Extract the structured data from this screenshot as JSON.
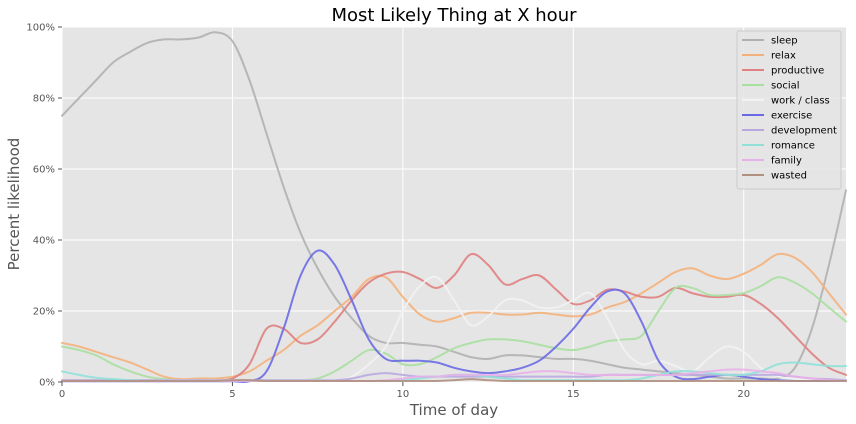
{
  "chart_data": {
    "type": "line",
    "title": "Most Likely Thing at X hour",
    "xlabel": "Time of day",
    "ylabel": "Percent likelihood",
    "xlim": [
      0,
      23
    ],
    "ylim": [
      0,
      100
    ],
    "x_ticks": [
      0,
      5,
      10,
      15,
      20
    ],
    "y_ticks": [
      0,
      20,
      40,
      60,
      80,
      100
    ],
    "y_tick_labels": [
      "0%",
      "20%",
      "40%",
      "60%",
      "80%",
      "100%"
    ],
    "grid": true,
    "legend_position": "top-right",
    "x": [
      0,
      0.5,
      1,
      1.5,
      2,
      2.5,
      3,
      3.5,
      4,
      4.5,
      5,
      5.5,
      6,
      6.5,
      7,
      7.5,
      8,
      8.5,
      9,
      9.5,
      10,
      10.5,
      11,
      11.5,
      12,
      12.5,
      13,
      13.5,
      14,
      14.5,
      15,
      15.5,
      16,
      16.5,
      17,
      17.5,
      18,
      18.5,
      19,
      19.5,
      20,
      20.5,
      21,
      21.5,
      22,
      22.5,
      23
    ],
    "series": [
      {
        "name": "sleep",
        "color": "#b0b0b0",
        "values": [
          75,
          80,
          85,
          90,
          93,
          95.5,
          96.5,
          96.5,
          97,
          98.5,
          96,
          85,
          70,
          55,
          42,
          32,
          24,
          18,
          13,
          11,
          11,
          10.5,
          10,
          8.5,
          7,
          6.5,
          7.5,
          7.5,
          7,
          6.5,
          6.5,
          6,
          5,
          4,
          3.5,
          3,
          2.5,
          2,
          1.5,
          1,
          1,
          1,
          1,
          4,
          15,
          33,
          54
        ]
      },
      {
        "name": "relax",
        "color": "#f4b07a",
        "values": [
          11,
          10,
          8.5,
          7,
          5.5,
          3.5,
          1.5,
          0.8,
          1,
          1,
          1.5,
          3,
          6,
          9,
          13,
          16,
          20,
          24,
          29,
          29.5,
          24,
          19,
          17,
          18,
          19.5,
          19.5,
          19,
          19,
          19.5,
          19,
          18.5,
          19,
          21,
          22.5,
          25,
          28,
          31,
          32,
          30,
          29,
          30.5,
          33,
          36,
          35,
          31,
          25,
          19
        ]
      },
      {
        "name": "productive",
        "color": "#e08080",
        "values": [
          0.5,
          0.5,
          0.5,
          0.5,
          0.5,
          0.5,
          0.5,
          0.5,
          0.5,
          0.5,
          1,
          5,
          15,
          15,
          11,
          12,
          17,
          23,
          28,
          30.5,
          31,
          29,
          26.5,
          30,
          36,
          33,
          27.5,
          29,
          30,
          26,
          22,
          23,
          26,
          25.5,
          24,
          24,
          26.5,
          25,
          24,
          24,
          24.5,
          22,
          18,
          13,
          8,
          4,
          2
        ]
      },
      {
        "name": "social",
        "color": "#a8dfa0",
        "values": [
          10,
          9,
          7.5,
          5,
          3,
          1.5,
          0.8,
          0.5,
          0.5,
          0.5,
          0.5,
          0.5,
          0.5,
          0.5,
          0.5,
          1,
          3,
          6,
          9,
          8,
          5,
          5,
          7,
          9.5,
          11,
          12,
          12,
          11.5,
          10.5,
          9.5,
          9,
          10,
          11.5,
          12,
          13,
          20,
          26.5,
          26.5,
          24.5,
          24.5,
          25,
          27,
          29.5,
          28,
          25,
          21,
          17
        ]
      },
      {
        "name": "work / class",
        "color": "#f2f2f2",
        "values": [
          0.5,
          0.5,
          0.5,
          0.5,
          0.5,
          0.5,
          0.5,
          0.5,
          0.5,
          0.5,
          0.5,
          0.5,
          0.5,
          0.5,
          0.5,
          0.5,
          0.5,
          1.5,
          5,
          10,
          20,
          27,
          29.5,
          23,
          16,
          18.5,
          23,
          23,
          21,
          21,
          23,
          25,
          18,
          9,
          5,
          6,
          4.5,
          3,
          7,
          10,
          8.5,
          4,
          1.5,
          1,
          0.5,
          0.5,
          0.5
        ]
      },
      {
        "name": "exercise",
        "color": "#6a6ae6",
        "values": [
          0.2,
          0.2,
          0.2,
          0.2,
          0.2,
          0.2,
          0.2,
          0.2,
          0.2,
          0.2,
          0.2,
          0.2,
          3,
          15,
          30,
          37,
          33,
          23,
          12,
          6.5,
          6,
          6,
          5.5,
          4,
          3,
          2.5,
          3,
          4,
          6,
          10,
          15,
          21,
          25.5,
          25,
          17,
          6,
          1.5,
          0.8,
          1.5,
          2,
          1.5,
          0.8,
          0.5,
          0.3,
          0.3,
          0.3,
          0.3
        ]
      },
      {
        "name": "development",
        "color": "#b8a8e0",
        "values": [
          0.5,
          0.5,
          0.5,
          0.5,
          0.5,
          0.5,
          0.5,
          0.5,
          0.5,
          0.5,
          0.5,
          0.5,
          0.5,
          0.5,
          0.5,
          0.5,
          0.5,
          1,
          2,
          2.5,
          2,
          1.5,
          1.5,
          1.5,
          1.5,
          1.5,
          1.5,
          1.5,
          1.5,
          1.5,
          1.5,
          1.5,
          2,
          2,
          2,
          2,
          2,
          2,
          2,
          2,
          2,
          2,
          2,
          1.5,
          1,
          0.8,
          0.5
        ]
      },
      {
        "name": "romance",
        "color": "#90e0d8",
        "values": [
          3,
          2,
          1.2,
          0.8,
          0.5,
          0.3,
          0.3,
          0.3,
          0.3,
          0.3,
          0.3,
          0.3,
          0.3,
          0.3,
          0.3,
          0.3,
          0.3,
          0.3,
          0.3,
          0.3,
          0.5,
          1,
          1.5,
          2,
          2,
          1.5,
          1,
          0.5,
          0.5,
          0.5,
          0.5,
          0.5,
          0.5,
          0.5,
          1,
          2,
          3,
          3,
          2.5,
          2,
          2,
          3,
          5,
          5.5,
          5,
          4.5,
          4.5
        ]
      },
      {
        "name": "family",
        "color": "#e8b0e8",
        "values": [
          0.3,
          0.3,
          0.3,
          0.3,
          0.3,
          0.3,
          0.3,
          0.3,
          0.3,
          0.3,
          0.3,
          0.3,
          0.3,
          0.3,
          0.3,
          0.3,
          0.3,
          0.3,
          0.3,
          0.5,
          1,
          1.5,
          1.5,
          2,
          2,
          2,
          2,
          2.5,
          3,
          3,
          2.5,
          2,
          2,
          2,
          2,
          2,
          2,
          2.5,
          3,
          3.5,
          3.5,
          3,
          2.5,
          1.5,
          1,
          0.5,
          0.3
        ]
      },
      {
        "name": "wasted",
        "color": "#b09080",
        "values": [
          0.3,
          0.3,
          0.3,
          0.3,
          0.3,
          0.3,
          0.3,
          0.3,
          0.3,
          0.3,
          0.5,
          0.5,
          0.3,
          0.3,
          0.3,
          0.3,
          0.3,
          0.3,
          0.3,
          0.3,
          0.3,
          0.3,
          0.3,
          0.5,
          0.8,
          0.5,
          0.3,
          0.3,
          0.3,
          0.3,
          0.3,
          0.3,
          0.3,
          0.3,
          0.3,
          0.3,
          0.3,
          0.3,
          0.3,
          0.3,
          0.3,
          0.3,
          0.3,
          0.3,
          0.3,
          0.3,
          0.3
        ]
      }
    ]
  }
}
